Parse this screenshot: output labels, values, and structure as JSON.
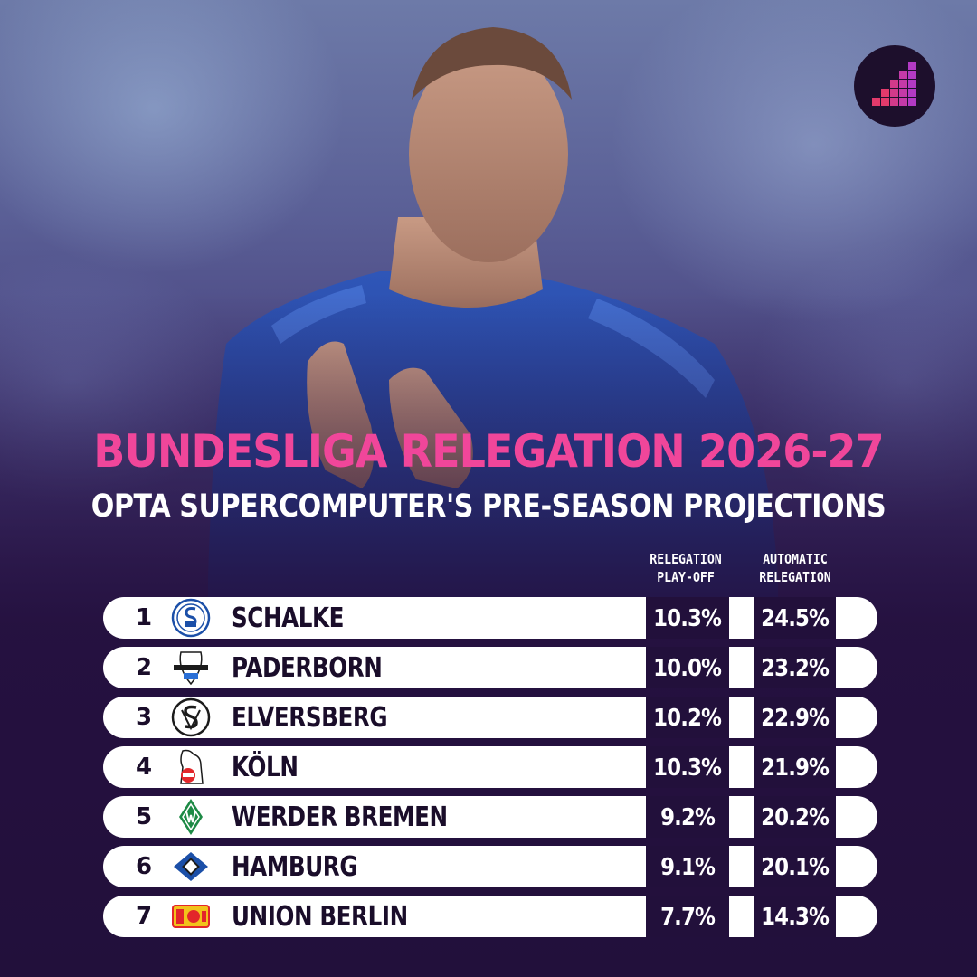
{
  "title": "BUNDESLIGA RELEGATION 2026-27",
  "subtitle": "OPTA SUPERCOMPUTER'S PRE-SEASON PROJECTIONS",
  "columns": {
    "playoff_line1": "RELEGATION",
    "playoff_line2": "PLAY-OFF",
    "auto_line1": "AUTOMATIC",
    "auto_line2": "RELEGATION"
  },
  "colors": {
    "title": "#f0469a",
    "subtitle": "#ffffff",
    "row_background": "#ffffff",
    "value_cell": "#22103b",
    "page_background": "#22103b"
  },
  "rows": [
    {
      "rank": "1",
      "team": "SCHALKE",
      "crest_icon": "schalke-crest-icon",
      "playoff": "10.3%",
      "automatic": "24.5%"
    },
    {
      "rank": "2",
      "team": "PADERBORN",
      "crest_icon": "paderborn-crest-icon",
      "playoff": "10.0%",
      "automatic": "23.2%"
    },
    {
      "rank": "3",
      "team": "ELVERSBERG",
      "crest_icon": "elversberg-crest-icon",
      "playoff": "10.2%",
      "automatic": "22.9%"
    },
    {
      "rank": "4",
      "team": "KÖLN",
      "crest_icon": "koln-crest-icon",
      "playoff": "10.3%",
      "automatic": "21.9%"
    },
    {
      "rank": "5",
      "team": "WERDER BREMEN",
      "crest_icon": "werder-bremen-crest-icon",
      "playoff": "9.2%",
      "automatic": "20.2%"
    },
    {
      "rank": "6",
      "team": "HAMBURG",
      "crest_icon": "hamburg-crest-icon",
      "playoff": "9.1%",
      "automatic": "20.1%"
    },
    {
      "rank": "7",
      "team": "UNION BERLIN",
      "crest_icon": "union-berlin-crest-icon",
      "playoff": "7.7%",
      "automatic": "14.3%"
    }
  ]
}
